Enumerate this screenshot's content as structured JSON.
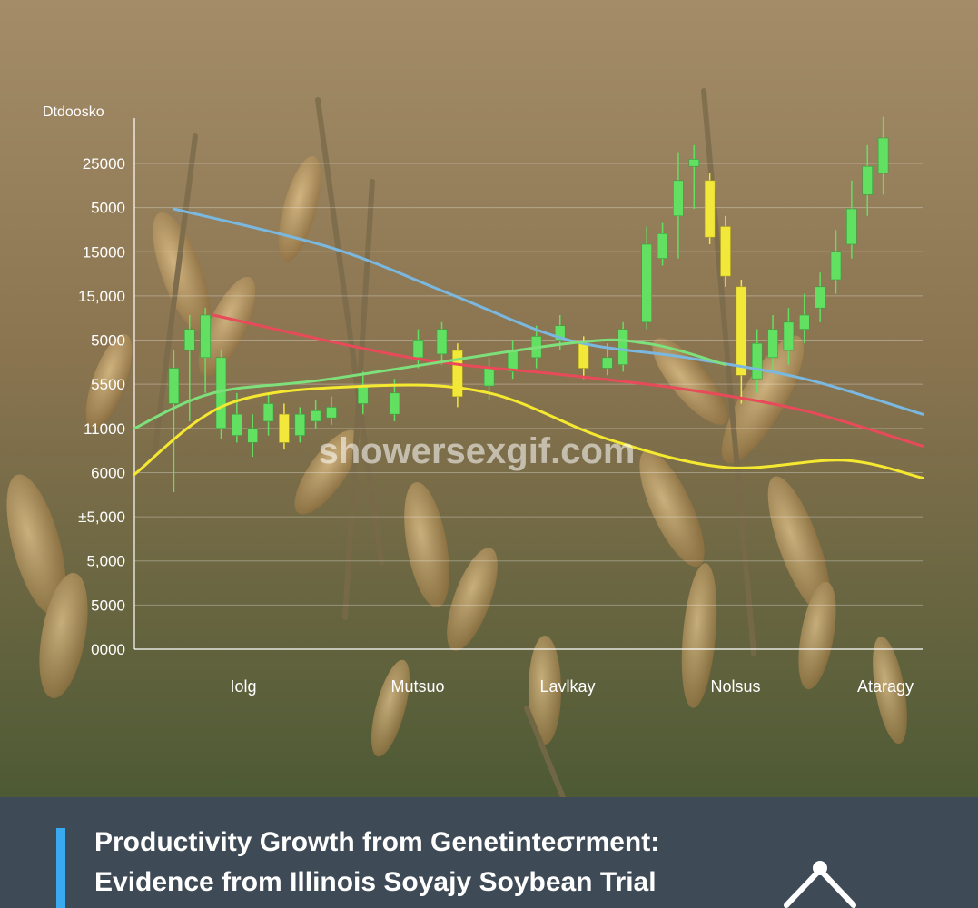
{
  "chart_data": {
    "type": "candlestick+line",
    "title": "Productivity Growth from Genetinteσrment:",
    "subtitle": "Evidence from Illinois Soyajy Soybean Trial",
    "ylabel": "Dtdoosko",
    "y_ticks": [
      "25000",
      "5000",
      "15000",
      "15,000",
      "5000",
      "5500",
      "11000",
      "6000",
      "±5,000",
      "5,000",
      "5000",
      "0000"
    ],
    "x_ticks": [
      "Iolg",
      "Mutsuo",
      "Lavlkay",
      "Nolsus",
      "Ataragy"
    ],
    "x_range": [
      0,
      100
    ],
    "y_range": [
      0,
      100
    ],
    "grid": true,
    "watermark": "showersexgif.com",
    "series": [
      {
        "color": "#7ab8e0",
        "points": [
          [
            5,
            100
          ],
          [
            25,
            89
          ],
          [
            40,
            76
          ],
          [
            55,
            63
          ],
          [
            70,
            58
          ],
          [
            85,
            52
          ],
          [
            100,
            42
          ]
        ]
      },
      {
        "color": "#e84a5a",
        "points": [
          [
            10,
            70
          ],
          [
            35,
            58
          ],
          [
            55,
            53
          ],
          [
            70,
            49
          ],
          [
            85,
            43
          ],
          [
            100,
            33
          ]
        ]
      },
      {
        "color": "#f5e830",
        "points": [
          [
            0,
            25
          ],
          [
            12,
            45
          ],
          [
            30,
            50
          ],
          [
            45,
            48
          ],
          [
            60,
            35
          ],
          [
            75,
            27
          ],
          [
            90,
            29
          ],
          [
            100,
            24
          ]
        ]
      },
      {
        "color": "#7ee07a",
        "points": [
          [
            0,
            38
          ],
          [
            10,
            48
          ],
          [
            25,
            52
          ],
          [
            55,
            62
          ],
          [
            65,
            62
          ],
          [
            75,
            56
          ]
        ]
      }
    ],
    "candles": [
      {
        "x": 5,
        "open": 45,
        "close": 55,
        "high": 60,
        "low": 20
      },
      {
        "x": 7,
        "open": 60,
        "close": 66,
        "high": 70,
        "low": 40
      },
      {
        "x": 9,
        "open": 58,
        "close": 70,
        "high": 72,
        "low": 48
      },
      {
        "x": 11,
        "open": 38,
        "close": 58,
        "high": 60,
        "low": 35
      },
      {
        "x": 13,
        "open": 36,
        "close": 42,
        "high": 48,
        "low": 34
      },
      {
        "x": 15,
        "open": 34,
        "close": 38,
        "high": 42,
        "low": 30
      },
      {
        "x": 17,
        "open": 40,
        "close": 45,
        "high": 48,
        "low": 36
      },
      {
        "x": 19,
        "open": 42,
        "close": 34,
        "high": 45,
        "low": 32
      },
      {
        "x": 21,
        "open": 36,
        "close": 42,
        "high": 44,
        "low": 34
      },
      {
        "x": 23,
        "open": 40,
        "close": 43,
        "high": 46,
        "low": 38
      },
      {
        "x": 25,
        "open": 41,
        "close": 44,
        "high": 47,
        "low": 39
      },
      {
        "x": 29,
        "open": 45,
        "close": 50,
        "high": 54,
        "low": 42
      },
      {
        "x": 33,
        "open": 42,
        "close": 48,
        "high": 52,
        "low": 40
      },
      {
        "x": 36,
        "open": 58,
        "close": 63,
        "high": 66,
        "low": 55
      },
      {
        "x": 39,
        "open": 59,
        "close": 66,
        "high": 68,
        "low": 56
      },
      {
        "x": 41,
        "open": 60,
        "close": 47,
        "high": 62,
        "low": 44
      },
      {
        "x": 45,
        "open": 50,
        "close": 55,
        "high": 58,
        "low": 46
      },
      {
        "x": 48,
        "open": 54,
        "close": 60,
        "high": 63,
        "low": 52
      },
      {
        "x": 51,
        "open": 58,
        "close": 64,
        "high": 67,
        "low": 55
      },
      {
        "x": 54,
        "open": 63,
        "close": 67,
        "high": 70,
        "low": 60
      },
      {
        "x": 57,
        "open": 62,
        "close": 55,
        "high": 64,
        "low": 52
      },
      {
        "x": 60,
        "open": 55,
        "close": 58,
        "high": 62,
        "low": 53
      },
      {
        "x": 62,
        "open": 56,
        "close": 66,
        "high": 68,
        "low": 54
      },
      {
        "x": 65,
        "open": 68,
        "close": 90,
        "high": 95,
        "low": 66
      },
      {
        "x": 67,
        "open": 86,
        "close": 93,
        "high": 96,
        "low": 84
      },
      {
        "x": 69,
        "open": 98,
        "close": 108,
        "high": 116,
        "low": 86
      },
      {
        "x": 71,
        "open": 112,
        "close": 114,
        "high": 118,
        "low": 100
      },
      {
        "x": 73,
        "open": 108,
        "close": 92,
        "high": 110,
        "low": 90
      },
      {
        "x": 75,
        "open": 95,
        "close": 81,
        "high": 98,
        "low": 78
      },
      {
        "x": 77,
        "open": 78,
        "close": 53,
        "high": 80,
        "low": 45
      },
      {
        "x": 79,
        "open": 52,
        "close": 62,
        "high": 66,
        "low": 48
      },
      {
        "x": 81,
        "open": 58,
        "close": 66,
        "high": 70,
        "low": 54
      },
      {
        "x": 83,
        "open": 60,
        "close": 68,
        "high": 72,
        "low": 56
      },
      {
        "x": 85,
        "open": 66,
        "close": 70,
        "high": 76,
        "low": 62
      },
      {
        "x": 87,
        "open": 72,
        "close": 78,
        "high": 82,
        "low": 68
      },
      {
        "x": 89,
        "open": 80,
        "close": 88,
        "high": 94,
        "low": 76
      },
      {
        "x": 91,
        "open": 90,
        "close": 100,
        "high": 108,
        "low": 86
      },
      {
        "x": 93,
        "open": 104,
        "close": 112,
        "high": 118,
        "low": 98
      },
      {
        "x": 95,
        "open": 110,
        "close": 120,
        "high": 126,
        "low": 104
      }
    ]
  },
  "colors": {
    "background": "#6d5b3c",
    "footer": "#3e4a55",
    "footer_accent": "#3aaaf0",
    "bull": "#62e062",
    "bear": "#f2e83a",
    "text": "#ffffff"
  },
  "icons": {
    "footer_logo": "chevron-up-icon"
  }
}
